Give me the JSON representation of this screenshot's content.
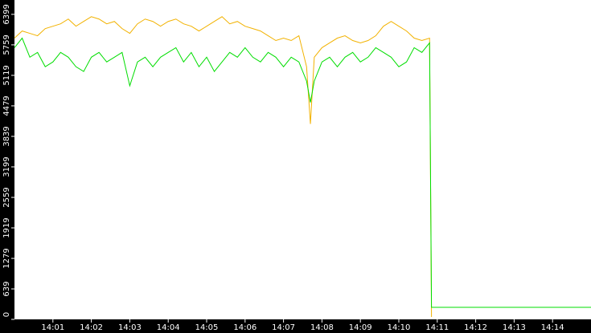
{
  "chart_data": {
    "type": "line",
    "x": [
      840.0,
      840.2,
      840.4,
      840.6,
      840.8,
      841.0,
      841.2,
      841.4,
      841.6,
      841.8,
      842.0,
      842.2,
      842.4,
      842.6,
      842.8,
      843.0,
      843.2,
      843.4,
      843.6,
      843.8,
      844.0,
      844.2,
      844.4,
      844.6,
      844.8,
      845.0,
      845.2,
      845.4,
      845.6,
      845.8,
      846.0,
      846.2,
      846.4,
      846.6,
      846.8,
      847.0,
      847.2,
      847.4,
      847.6,
      847.7,
      847.8,
      848.0,
      848.2,
      848.4,
      848.6,
      848.8,
      849.0,
      849.2,
      849.4,
      849.6,
      849.8,
      850.0,
      850.2,
      850.4,
      850.6,
      850.8,
      850.85,
      855.0
    ],
    "series": [
      {
        "color": "#f2b200",
        "values": [
          5900,
          6050,
          6000,
          5950,
          6100,
          6150,
          6200,
          6300,
          6150,
          6250,
          6350,
          6300,
          6200,
          6250,
          6100,
          6000,
          6200,
          6300,
          6250,
          6150,
          6250,
          6300,
          6200,
          6150,
          6050,
          6150,
          6250,
          6350,
          6200,
          6250,
          6150,
          6100,
          6050,
          5950,
          5850,
          5900,
          5850,
          5950,
          5300,
          4100,
          5500,
          5700,
          5800,
          5900,
          5950,
          5850,
          5800,
          5850,
          5950,
          6150,
          6250,
          6150,
          6050,
          5900,
          5850,
          5900,
          50,
          null
        ]
      },
      {
        "color": "#00dd00",
        "values": [
          5700,
          5900,
          5500,
          5600,
          5300,
          5400,
          5600,
          5500,
          5300,
          5200,
          5500,
          5600,
          5400,
          5500,
          5600,
          4900,
          5400,
          5500,
          5300,
          5500,
          5600,
          5700,
          5400,
          5600,
          5300,
          5500,
          5200,
          5400,
          5600,
          5500,
          5700,
          5500,
          5400,
          5600,
          5500,
          5300,
          5500,
          5400,
          5000,
          4550,
          5000,
          5400,
          5500,
          5300,
          5500,
          5600,
          5400,
          5500,
          5700,
          5600,
          5500,
          5300,
          5400,
          5700,
          5600,
          5800,
          253,
          253
        ]
      }
    ],
    "xlim": [
      840,
      855
    ],
    "xticks": [
      {
        "value": 841,
        "label": "14:01"
      },
      {
        "value": 842,
        "label": "14:02"
      },
      {
        "value": 843,
        "label": "14:03"
      },
      {
        "value": 844,
        "label": "14:04"
      },
      {
        "value": 845,
        "label": "14:05"
      },
      {
        "value": 846,
        "label": "14:06"
      },
      {
        "value": 847,
        "label": "14:07"
      },
      {
        "value": 848,
        "label": "14:08"
      },
      {
        "value": 849,
        "label": "14:09"
      },
      {
        "value": 850,
        "label": "14:10"
      },
      {
        "value": 851,
        "label": "14:11"
      },
      {
        "value": 852,
        "label": "14:12"
      },
      {
        "value": 853,
        "label": "14:13"
      },
      {
        "value": 854,
        "label": "14:14"
      }
    ],
    "ylim": [
      0,
      6700
    ],
    "yticks": [
      0,
      639,
      1279,
      1919,
      2559,
      3199,
      3839,
      4479,
      5119,
      5759,
      6399
    ]
  }
}
